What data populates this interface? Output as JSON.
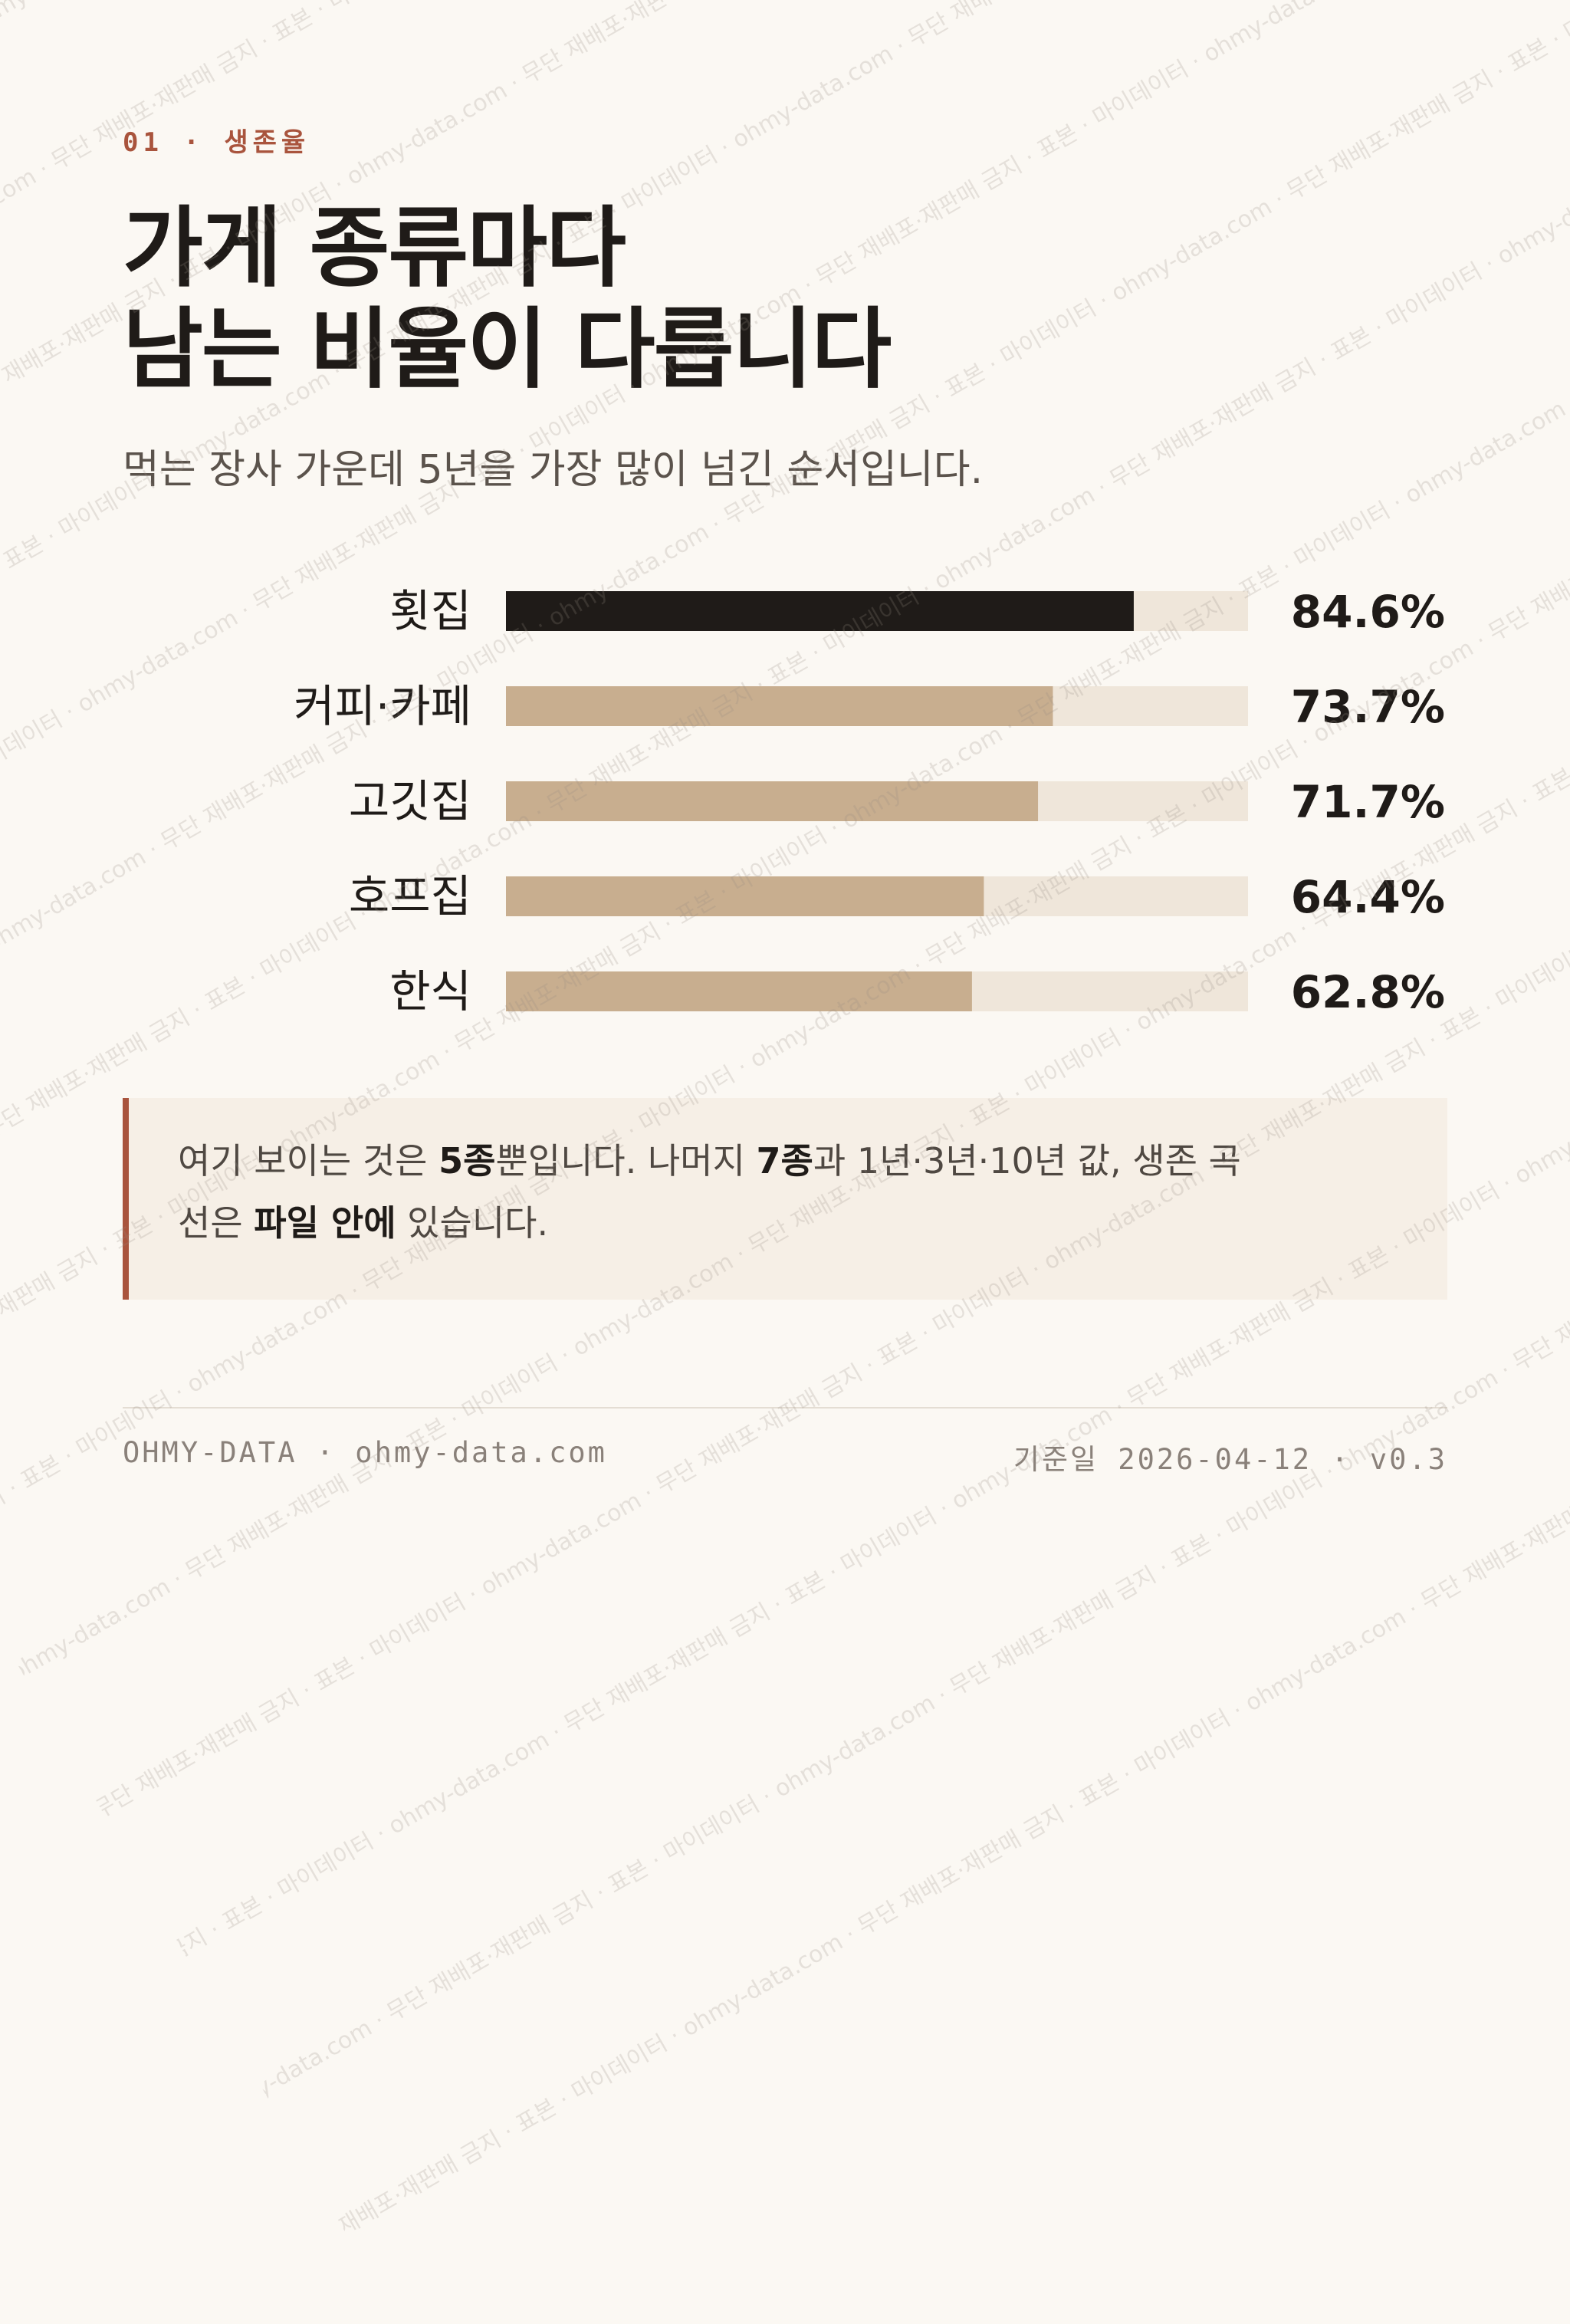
{
  "header": {
    "eyebrow": "01 · 생존율",
    "title_line1": "가게 종류마다",
    "title_line2": "남는 비율이 다릅니다",
    "subtitle": "먹는 장사 가운데 5년을 가장 많이 넘긴 순서입니다."
  },
  "chart_data": {
    "type": "bar",
    "orientation": "horizontal",
    "categories": [
      "횟집",
      "커피·카페",
      "고깃집",
      "호프집",
      "한식"
    ],
    "values": [
      84.6,
      73.7,
      71.7,
      64.4,
      62.8
    ],
    "value_labels": [
      "84.6%",
      "73.7%",
      "71.7%",
      "64.4%",
      "62.8%"
    ],
    "xlim": [
      0,
      100
    ],
    "highlight_index": 0,
    "colors": {
      "highlight": "#1f1b18",
      "bar": "#c8ae8f",
      "track": "#efe6da"
    }
  },
  "note": {
    "t1": "여기 보이는 것은 ",
    "b1": "5종",
    "t2": "뿐입니다. 나머지 ",
    "b2": "7종",
    "t3": "과 1년·3년·10년 값, 생존 곡",
    "t4": "선은 ",
    "b3": "파일 안에",
    "t5": " 있습니다."
  },
  "footer": {
    "left": "OHMY-DATA · ohmy-data.com",
    "right": "기준일 2026-04-12 · v0.3"
  },
  "watermark": {
    "text": "마이데이터 · ohmy-data.com · 무단 재배포·재판매 금지 · 표본"
  },
  "colors": {
    "background": "#fbf8f3",
    "accent": "#a9543d",
    "text": "#1f1b18",
    "note_bg": "#f6efe6"
  }
}
